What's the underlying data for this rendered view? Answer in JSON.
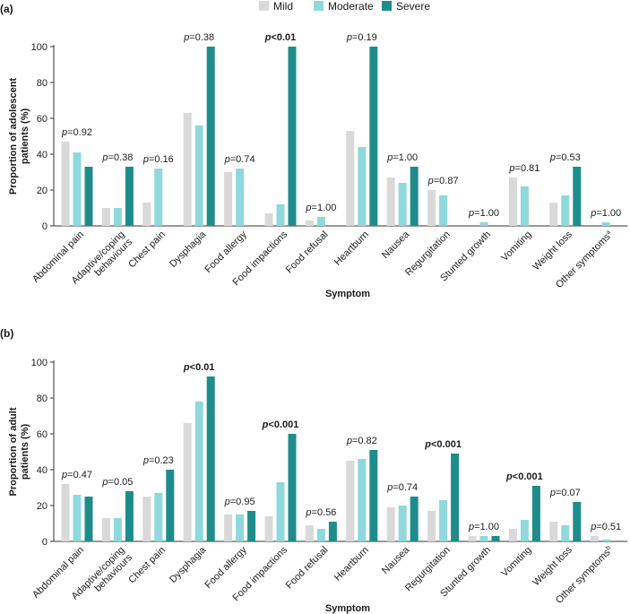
{
  "legend": [
    {
      "name": "Mild",
      "color": "#d9d9d9"
    },
    {
      "name": "Moderate",
      "color": "#8fd8dc"
    },
    {
      "name": "Severe",
      "color": "#1f8c8c"
    }
  ],
  "chart_data": [
    {
      "type": "bar",
      "panel_label": "(a)",
      "title": "",
      "xlabel": "Symptom",
      "ylabel": "Proportion of adolescent patients (%)",
      "ylabel_lines": [
        "Proportion of adolescent",
        "patients (%)"
      ],
      "ylim": [
        0,
        100
      ],
      "yticks": [
        "0",
        "20",
        "40",
        "60",
        "80",
        "100"
      ],
      "categories": [
        {
          "lines": [
            "Abdominal pain"
          ]
        },
        {
          "lines": [
            "Adaptive/coping",
            "behaviours"
          ]
        },
        {
          "lines": [
            "Chest pain"
          ]
        },
        {
          "lines": [
            "Dysphagia"
          ]
        },
        {
          "lines": [
            "Food allergy"
          ]
        },
        {
          "lines": [
            "Food impactions"
          ]
        },
        {
          "lines": [
            "Food refusal"
          ]
        },
        {
          "lines": [
            "Heartburn"
          ]
        },
        {
          "lines": [
            "Nausea"
          ]
        },
        {
          "lines": [
            "Regurgitation"
          ]
        },
        {
          "lines": [
            "Stunted growth"
          ]
        },
        {
          "lines": [
            "Vomiting"
          ]
        },
        {
          "lines": [
            "Weight loss"
          ]
        },
        {
          "lines": [
            "Other symptoms"
          ],
          "sup": "a"
        }
      ],
      "series": [
        {
          "name": "Mild",
          "values": [
            47,
            10,
            13,
            63,
            30,
            7,
            3,
            53,
            27,
            20,
            0,
            27,
            13,
            0
          ]
        },
        {
          "name": "Moderate",
          "values": [
            41,
            10,
            32,
            56,
            32,
            12,
            5,
            44,
            24,
            17,
            2,
            22,
            17,
            2
          ]
        },
        {
          "name": "Severe",
          "values": [
            33,
            33,
            0,
            100,
            0,
            100,
            0,
            100,
            33,
            0,
            0,
            0,
            33,
            0
          ]
        }
      ],
      "p_values": [
        {
          "text": "=0.92",
          "bold": false
        },
        {
          "text": "=0.38",
          "bold": false
        },
        {
          "text": "=0.16",
          "bold": false
        },
        {
          "text": "=0.38",
          "bold": false
        },
        {
          "text": "=0.74",
          "bold": false
        },
        {
          "text": "<0.01",
          "bold": true
        },
        {
          "text": "=1.00",
          "bold": false
        },
        {
          "text": "=0.19",
          "bold": false
        },
        {
          "text": "=1.00",
          "bold": false
        },
        {
          "text": "=0.87",
          "bold": false
        },
        {
          "text": "=1.00",
          "bold": false
        },
        {
          "text": "=0.81",
          "bold": false
        },
        {
          "text": "=0.53",
          "bold": false
        },
        {
          "text": "=1.00",
          "bold": false
        }
      ],
      "p_symbol": "p"
    },
    {
      "type": "bar",
      "panel_label": "(b)",
      "title": "",
      "xlabel": "Symptom",
      "ylabel": "Proportion of adult patients (%)",
      "ylabel_lines": [
        "Proportion of adult",
        "patients (%)"
      ],
      "ylim": [
        0,
        100
      ],
      "yticks": [
        "0",
        "20",
        "40",
        "60",
        "80",
        "100"
      ],
      "categories": [
        {
          "lines": [
            "Abdominal pain"
          ]
        },
        {
          "lines": [
            "Adaptive/coping",
            "behaviours"
          ]
        },
        {
          "lines": [
            "Chest pain"
          ]
        },
        {
          "lines": [
            "Dysphagia"
          ]
        },
        {
          "lines": [
            "Food allergy"
          ]
        },
        {
          "lines": [
            "Food impactions"
          ]
        },
        {
          "lines": [
            "Food refusal"
          ]
        },
        {
          "lines": [
            "Heartburn"
          ]
        },
        {
          "lines": [
            "Nausea"
          ]
        },
        {
          "lines": [
            "Regurgitation"
          ]
        },
        {
          "lines": [
            "Stunted growth"
          ]
        },
        {
          "lines": [
            "Vomiting"
          ]
        },
        {
          "lines": [
            "Weight loss"
          ]
        },
        {
          "lines": [
            "Other symptoms"
          ],
          "sup": "b"
        }
      ],
      "series": [
        {
          "name": "Mild",
          "values": [
            32,
            13,
            25,
            66,
            15,
            14,
            9,
            45,
            19,
            17,
            3,
            7,
            11,
            3
          ]
        },
        {
          "name": "Moderate",
          "values": [
            26,
            13,
            27,
            78,
            15,
            33,
            7,
            46,
            20,
            23,
            3,
            12,
            9,
            1
          ]
        },
        {
          "name": "Severe",
          "values": [
            25,
            28,
            40,
            92,
            17,
            60,
            11,
            51,
            25,
            49,
            3,
            31,
            22,
            0
          ]
        }
      ],
      "p_values": [
        {
          "text": "=0.47",
          "bold": false
        },
        {
          "text": "=0.05",
          "bold": false
        },
        {
          "text": "=0.23",
          "bold": false
        },
        {
          "text": "<0.01",
          "bold": true
        },
        {
          "text": "=0.95",
          "bold": false
        },
        {
          "text": "<0.001",
          "bold": true
        },
        {
          "text": "=0.56",
          "bold": false
        },
        {
          "text": "=0.82",
          "bold": false
        },
        {
          "text": "=0.74",
          "bold": false
        },
        {
          "text": "<0.001",
          "bold": true
        },
        {
          "text": "=1.00",
          "bold": false
        },
        {
          "text": "<0.001",
          "bold": true
        },
        {
          "text": "=0.07",
          "bold": false
        },
        {
          "text": "=0.51",
          "bold": false
        }
      ],
      "p_symbol": "p"
    }
  ]
}
